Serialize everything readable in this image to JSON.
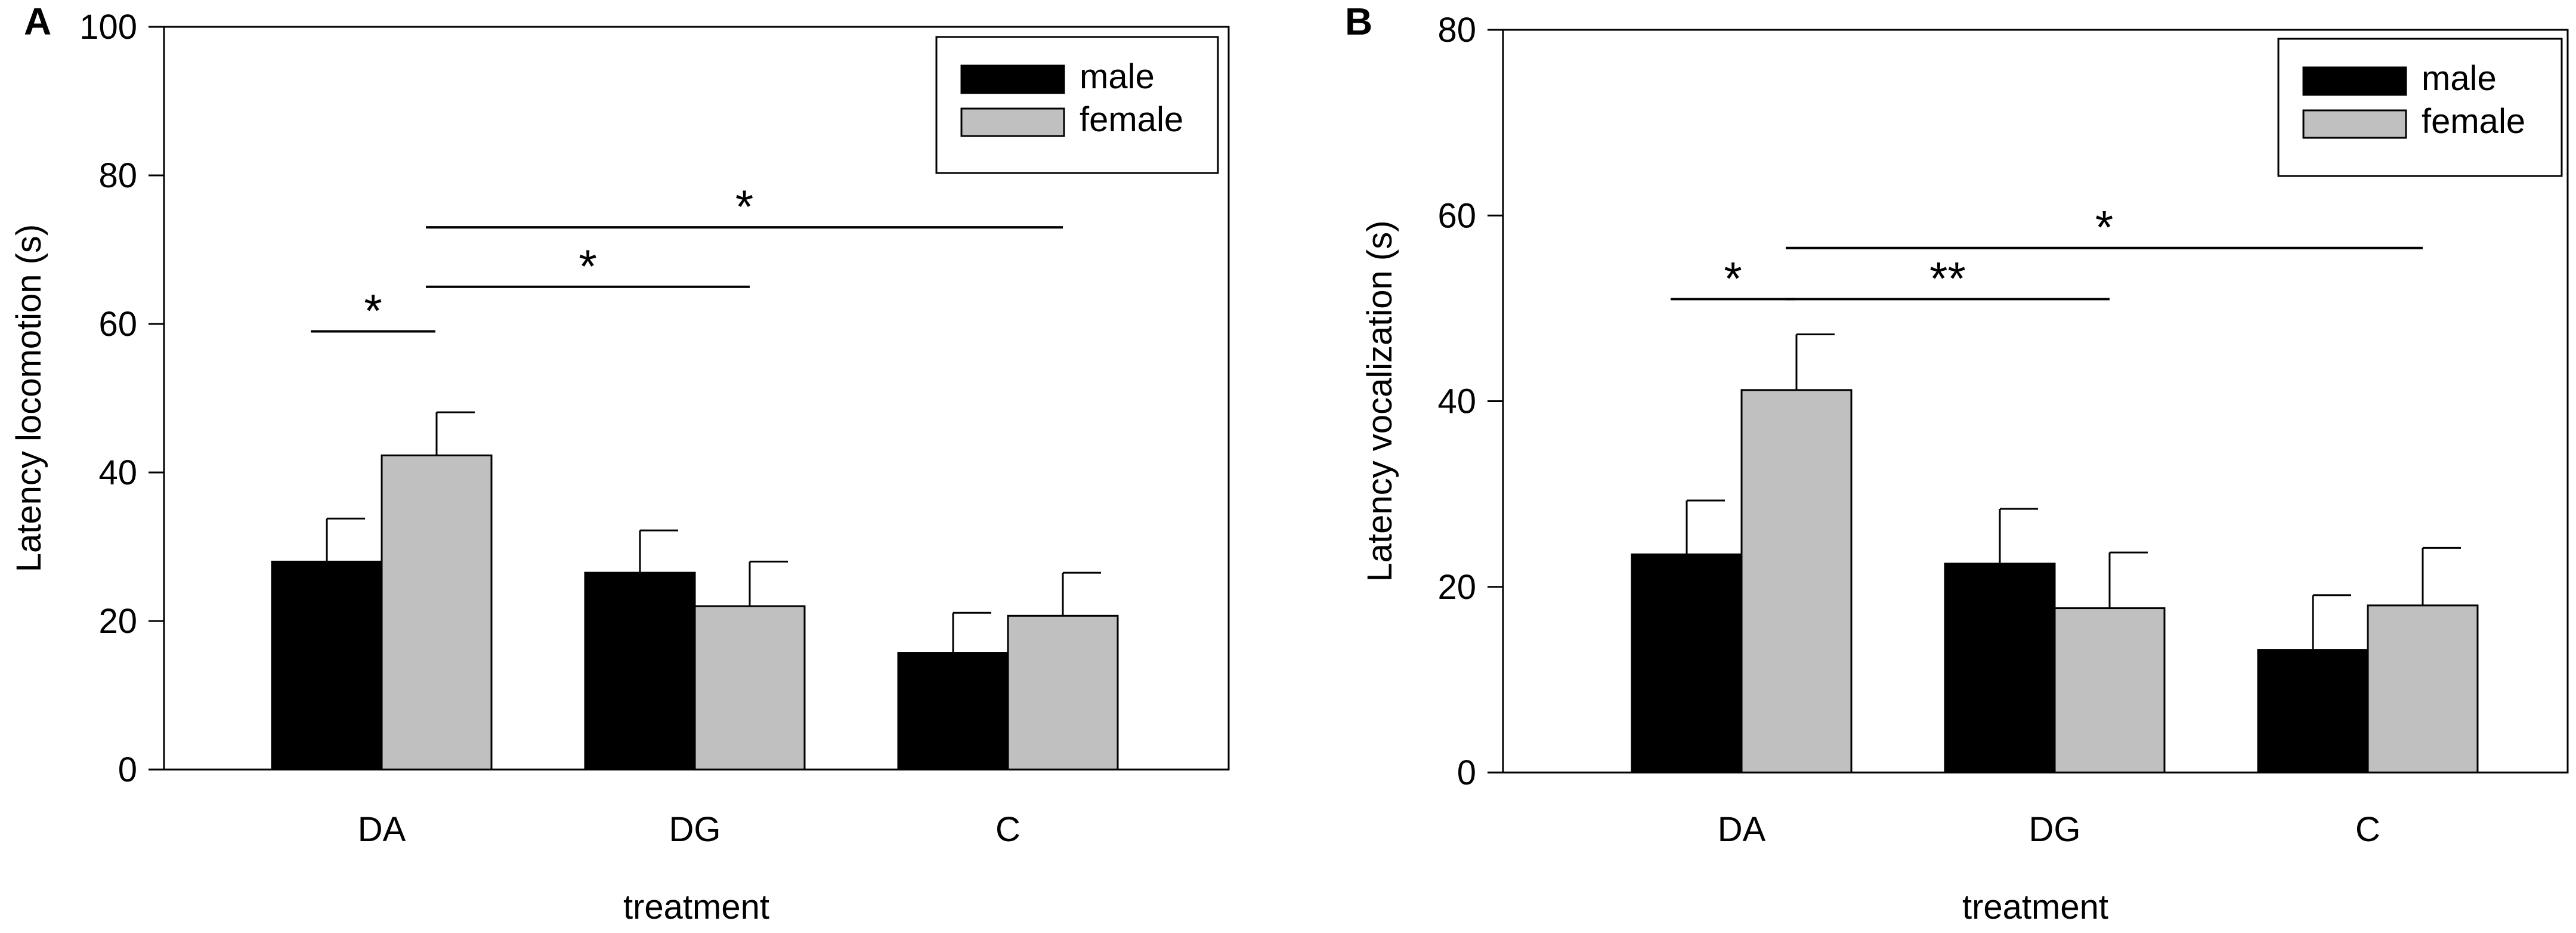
{
  "chart_data": [
    {
      "panel_label": "A",
      "type": "bar",
      "categories": [
        "DA",
        "DG",
        "C"
      ],
      "series": [
        {
          "name": "male",
          "color": "#000000",
          "values": [
            28,
            26.5,
            15.7
          ],
          "errors": [
            5.8,
            5.7,
            5.4
          ]
        },
        {
          "name": "female",
          "color": "#c0c0c0",
          "values": [
            42.3,
            22,
            20.7
          ],
          "errors": [
            5.8,
            6,
            5.8
          ]
        }
      ],
      "xlabel": "treatment",
      "ylabel": "Latency locomotion (s)",
      "ylim": [
        0,
        100
      ],
      "yticks": [
        "0",
        "20",
        "40",
        "60",
        "80",
        "100"
      ],
      "ytick_values": [
        0,
        20,
        40,
        60,
        80,
        100
      ],
      "legend": {
        "position": "top-right",
        "entries": [
          "male",
          "female"
        ]
      },
      "significance": [
        {
          "from": {
            "category": 0,
            "series": 0
          },
          "to": {
            "category": 0,
            "series": 1
          },
          "level": 59,
          "label": "*"
        },
        {
          "from": {
            "category": 0,
            "series": 1
          },
          "to": {
            "category": 1,
            "series": 1
          },
          "level": 65,
          "label": "*"
        },
        {
          "from": {
            "category": 0,
            "series": 1
          },
          "to": {
            "category": 2,
            "series": 1
          },
          "level": 73,
          "label": "*"
        }
      ]
    },
    {
      "panel_label": "B",
      "type": "bar",
      "categories": [
        "DA",
        "DG",
        "C"
      ],
      "series": [
        {
          "name": "male",
          "color": "#000000",
          "values": [
            23.5,
            22.5,
            13.2
          ],
          "errors": [
            5.8,
            5.9,
            5.9
          ]
        },
        {
          "name": "female",
          "color": "#c0c0c0",
          "values": [
            41.2,
            17.7,
            18
          ],
          "errors": [
            6,
            6,
            6.2
          ]
        }
      ],
      "xlabel": "treatment",
      "ylabel": "Latency vocalization (s)",
      "ylim": [
        0,
        80
      ],
      "yticks": [
        "0",
        "20",
        "40",
        "60",
        "80"
      ],
      "ytick_values": [
        0,
        20,
        40,
        60,
        80
      ],
      "legend": {
        "position": "top-right",
        "entries": [
          "male",
          "female"
        ]
      },
      "significance": [
        {
          "from": {
            "category": 0,
            "series": 0
          },
          "to": {
            "category": 0,
            "series": 1
          },
          "level": 51,
          "label": "*"
        },
        {
          "from": {
            "category": 0,
            "series": 1
          },
          "to": {
            "category": 1,
            "series": 1
          },
          "level": 51,
          "label": "**"
        },
        {
          "from": {
            "category": 0,
            "series": 1
          },
          "to": {
            "category": 2,
            "series": 1
          },
          "level": 56.5,
          "label": "*"
        }
      ]
    }
  ]
}
